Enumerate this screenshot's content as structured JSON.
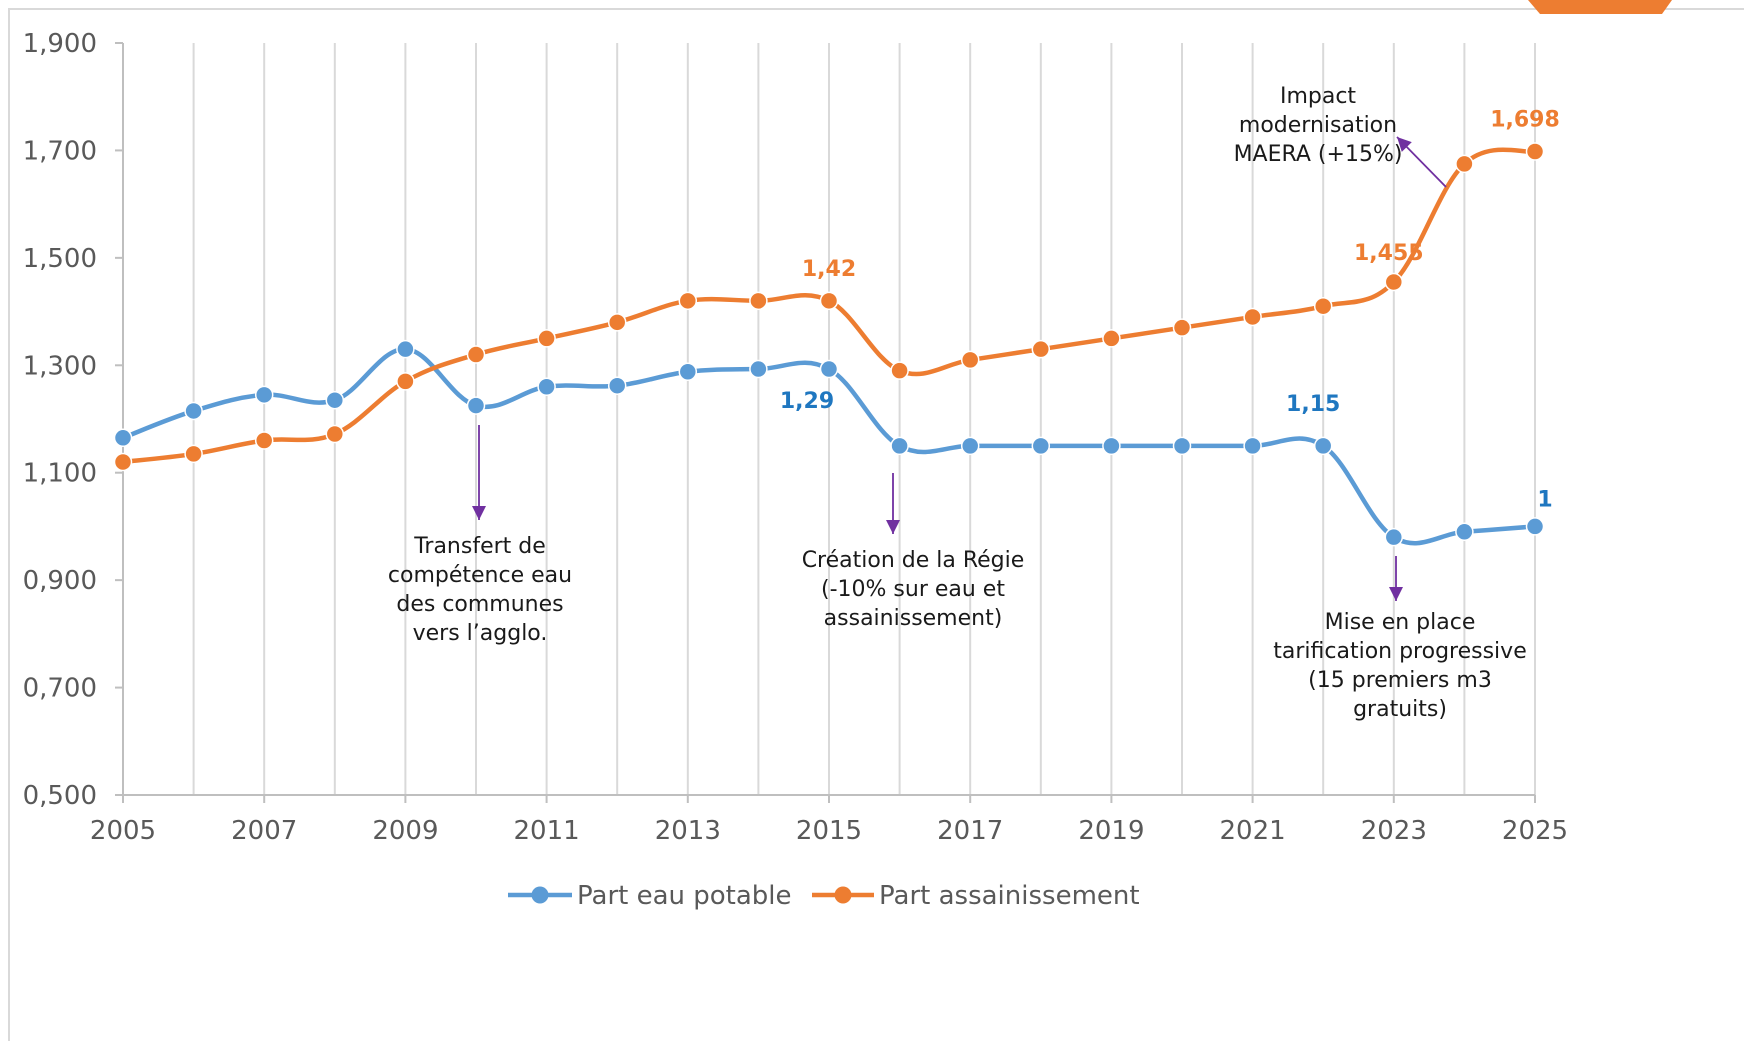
{
  "chart_data": {
    "type": "line",
    "title": "",
    "xlabel": "",
    "ylabel": "",
    "x": [
      2005,
      2006,
      2007,
      2008,
      2009,
      2010,
      2011,
      2012,
      2013,
      2014,
      2015,
      2016,
      2017,
      2018,
      2019,
      2020,
      2021,
      2022,
      2023,
      2024,
      2025
    ],
    "xlim": [
      2005,
      2025
    ],
    "x_ticks": [
      "2005",
      "2007",
      "2009",
      "2011",
      "2013",
      "2015",
      "2017",
      "2019",
      "2021",
      "2023",
      "2025"
    ],
    "ylim": [
      0.5,
      1.9
    ],
    "y_ticks": [
      "0,500",
      "0,700",
      "0,900",
      "1,100",
      "1,300",
      "1,500",
      "1,700",
      "1,900"
    ],
    "grid": "vertical",
    "legend_position": "bottom",
    "series": [
      {
        "name": "Part eau potable",
        "color": "#5B9BD5",
        "values": [
          1.165,
          1.215,
          1.245,
          1.235,
          1.33,
          1.225,
          1.26,
          1.262,
          1.288,
          1.293,
          1.293,
          1.15,
          1.15,
          1.15,
          1.15,
          1.15,
          1.15,
          1.15,
          0.98,
          0.99,
          1.0
        ]
      },
      {
        "name": "Part assainissement",
        "color": "#ED7D31",
        "values": [
          1.12,
          1.135,
          1.16,
          1.172,
          1.27,
          1.32,
          1.35,
          1.38,
          1.42,
          1.42,
          1.42,
          1.29,
          1.31,
          1.33,
          1.35,
          1.37,
          1.39,
          1.41,
          1.455,
          1.675,
          1.698
        ]
      }
    ],
    "data_labels": [
      {
        "series": 0,
        "x": 2015,
        "text": "1,29",
        "color": "#1F77C0"
      },
      {
        "series": 0,
        "x": 2022,
        "text": "1,15",
        "color": "#1F77C0"
      },
      {
        "series": 0,
        "x": 2025,
        "text": "1",
        "color": "#1F77C0"
      },
      {
        "series": 1,
        "x": 2015,
        "text": "1,42",
        "color": "#ED7D31"
      },
      {
        "series": 1,
        "x": 2023,
        "text": "1,455",
        "color": "#ED7D31"
      },
      {
        "series": 1,
        "x": 2025,
        "text": "1,698",
        "color": "#ED7D31"
      }
    ],
    "annotations": [
      {
        "lines": [
          "Transfert de",
          "compétence eau",
          "des communes",
          "vers l’agglo."
        ],
        "arrow_color": "#7030A0"
      },
      {
        "lines": [
          "Création de la Régie",
          "(-10% sur eau et",
          "assainissement)"
        ],
        "arrow_color": "#7030A0"
      },
      {
        "lines": [
          "Mise en place",
          "tarification progressive",
          "(15 premiers m3",
          "gratuits)"
        ],
        "arrow_color": "#7030A0"
      },
      {
        "lines": [
          "Impact",
          "modernisation",
          "MAERA (+15%)"
        ],
        "arrow_color": "#7030A0"
      }
    ],
    "frame_color": "#D9D9D9",
    "accent_color": "#ED7D31"
  }
}
